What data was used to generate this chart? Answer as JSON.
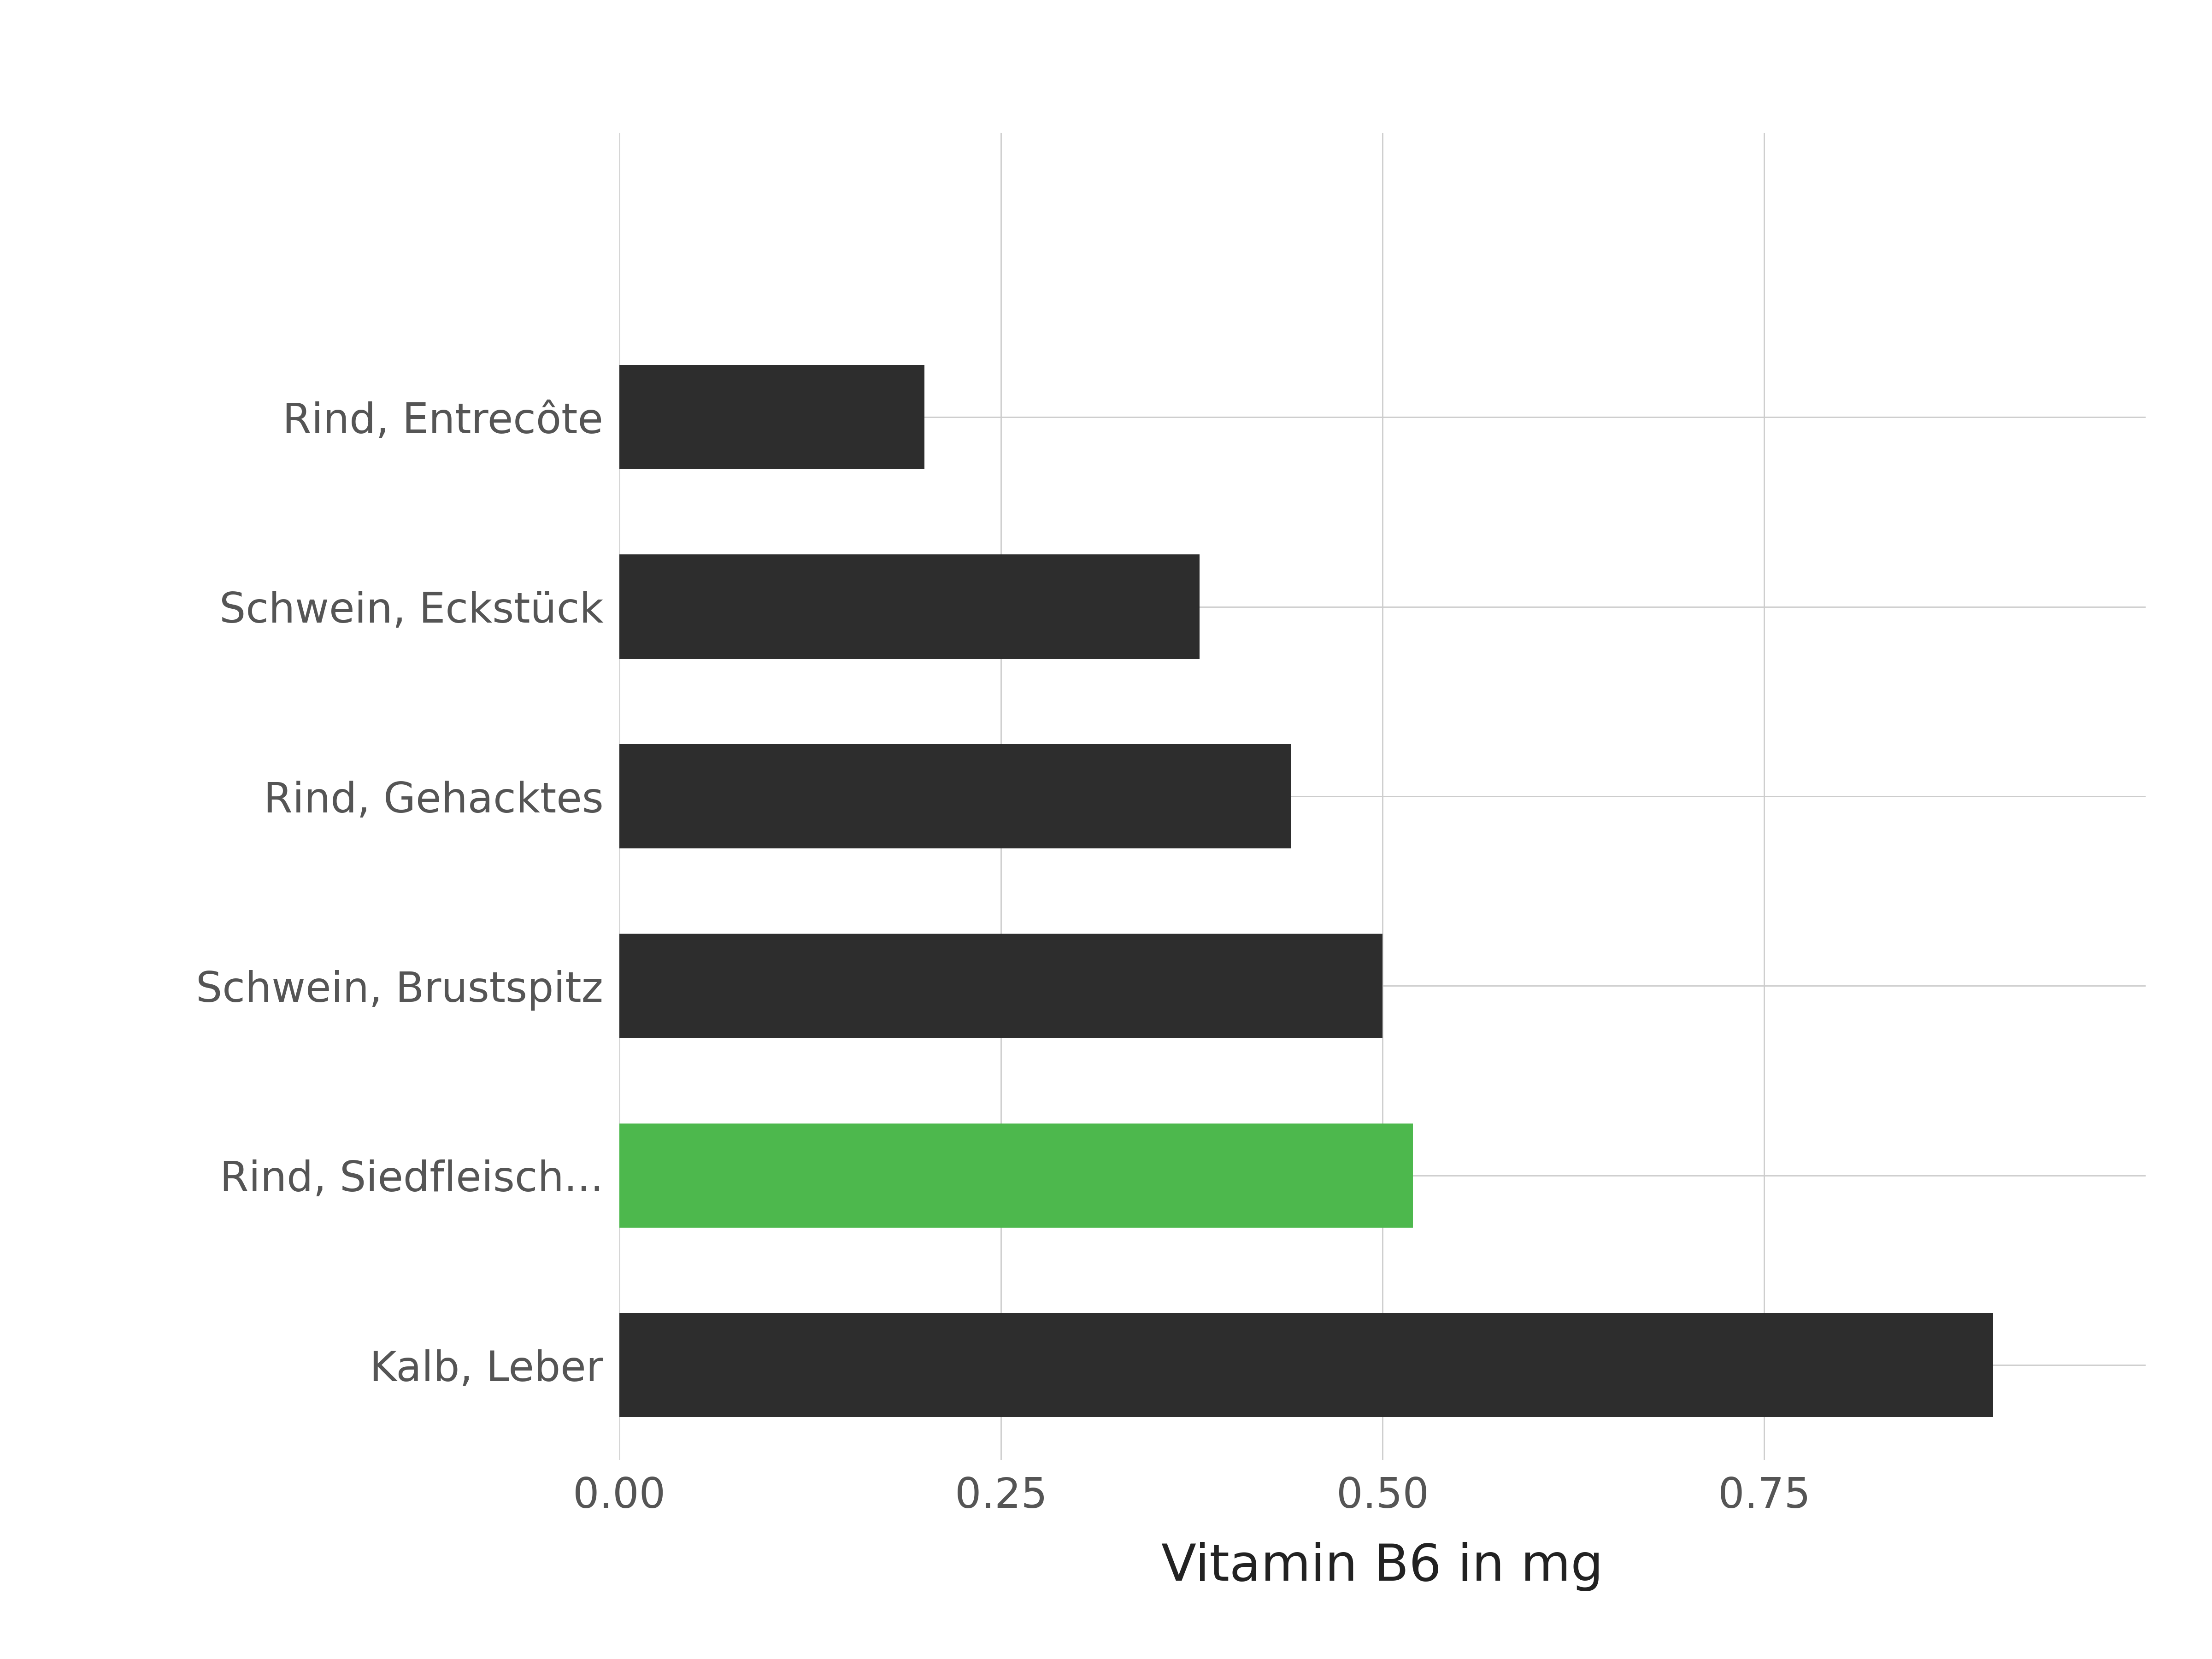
{
  "categories": [
    "Rind, Entrecôte",
    "Schwein, Eckstück",
    "Rind, Gehacktes",
    "Schwein, Brustspitz",
    "Rind, Siedfleisch...",
    "Kalb, Leber"
  ],
  "values": [
    0.2,
    0.38,
    0.44,
    0.5,
    0.52,
    0.9
  ],
  "bar_colors": [
    "#2d2d2d",
    "#2d2d2d",
    "#2d2d2d",
    "#2d2d2d",
    "#4db84d",
    "#2d2d2d"
  ],
  "xlabel": "Vitamin B6 in mg",
  "xlim": [
    0,
    1.0
  ],
  "xticks": [
    0.0,
    0.25,
    0.5,
    0.75
  ],
  "xticklabels": [
    "0.00",
    "0.25",
    "0.50",
    "0.75"
  ],
  "background_color": "#ffffff",
  "grid_color": "#cccccc",
  "label_color": "#555555",
  "bar_height": 0.55,
  "xlabel_fontsize": 80,
  "ylabel_fontsize": 65,
  "tick_fontsize": 65
}
